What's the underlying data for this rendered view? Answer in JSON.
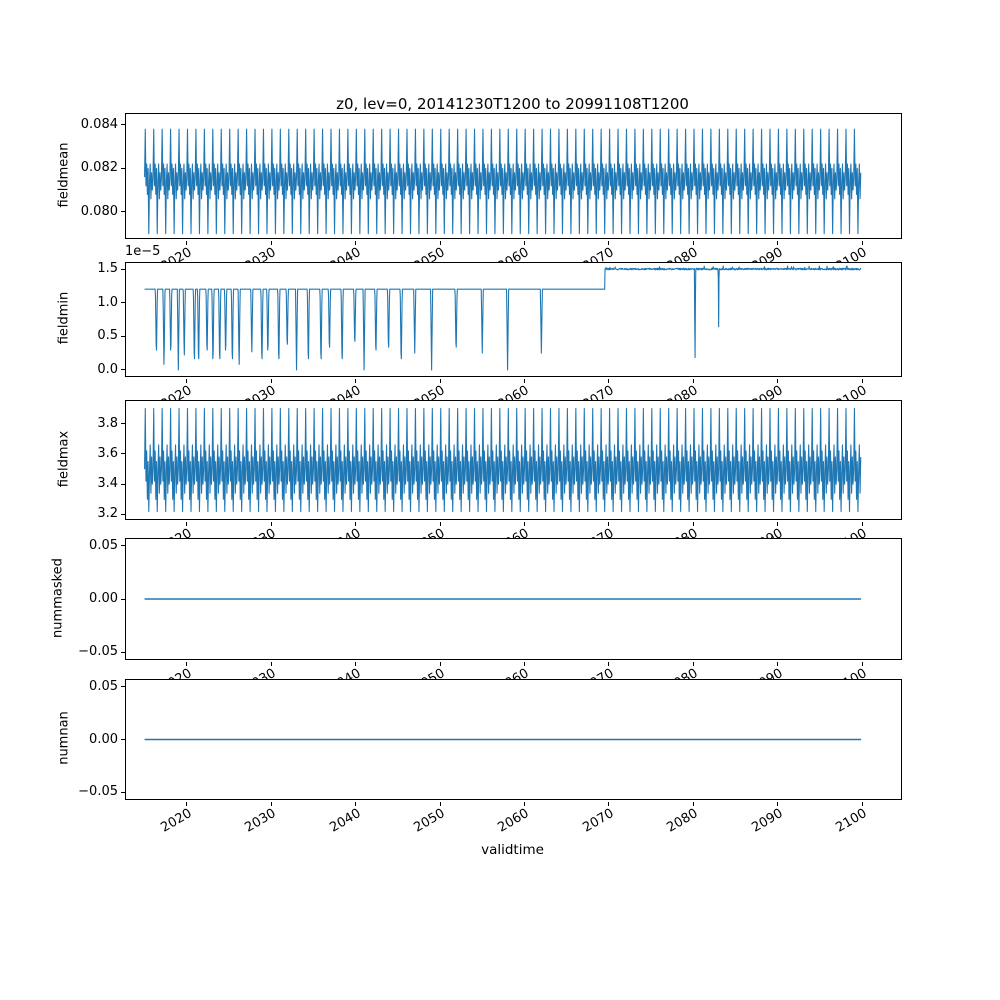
{
  "title": "z0, lev=0, 20141230T1200 to 20991108T1200",
  "xlabel": "validtime",
  "line_color": "#1f77b4",
  "x": {
    "lim": [
      2012.8,
      2104.6
    ],
    "data_start": 2015.0,
    "data_end": 2099.87,
    "ticks": [
      2020,
      2030,
      2040,
      2050,
      2060,
      2070,
      2080,
      2090,
      2100
    ],
    "tick_labels": [
      "2020",
      "2030",
      "2040",
      "2050",
      "2060",
      "2070",
      "2080",
      "2090",
      "2100"
    ]
  },
  "chart_data": [
    {
      "type": "line",
      "ylabel": "fieldmean",
      "ylim": [
        0.0788,
        0.0845
      ],
      "yticks": [
        0.08,
        0.082,
        0.084
      ],
      "ytick_labels": [
        "0.080",
        "0.082",
        "0.084"
      ],
      "description": "dense annual oscillation between ~0.0790 and ~0.0838",
      "signal": {
        "kind": "pattern",
        "samples_per_year": 12,
        "pattern": [
          0.0816,
          0.0838,
          0.0812,
          0.0822,
          0.0808,
          0.082,
          0.079,
          0.0814,
          0.0822,
          0.0806,
          0.0818,
          0.081
        ]
      }
    },
    {
      "type": "line",
      "ylabel": "fieldmin",
      "offset_text": "1e−5",
      "ylim": [
        -9e-07,
        1.59e-05
      ],
      "yticks": [
        0,
        5e-06,
        1e-05,
        1.5e-05
      ],
      "ytick_labels": [
        "0.0",
        "0.5",
        "1.0",
        "1.5"
      ],
      "description": "base 1.2e-5 with sharp dips toward 0 until ~2062, steps up to ~1.5e-5 at ~2069.5 with small noise; deep dip near 2080 and partial dip near 2083",
      "signal": {
        "kind": "piecewise",
        "base": 1.2e-05,
        "step_year": 2069.5,
        "step_value": 1.5e-05,
        "noise_amp": 1.2e-07,
        "spike_amp": 3.5e-07,
        "dip_halfwidth": 0.12,
        "dips": [
          [
            2016.4,
            1.5e-06
          ],
          [
            2017.3,
            0
          ],
          [
            2018.1,
            1.5e-06
          ],
          [
            2019.0,
            0
          ],
          [
            2019.7,
            1.5e-06
          ],
          [
            2020.9,
            0
          ],
          [
            2021.4,
            0
          ],
          [
            2022.4,
            1.5e-06
          ],
          [
            2023.1,
            0
          ],
          [
            2023.9,
            0
          ],
          [
            2024.6,
            1.5e-06
          ],
          [
            2025.4,
            0
          ],
          [
            2026.2,
            0
          ],
          [
            2027.7,
            2e-06
          ],
          [
            2028.9,
            0
          ],
          [
            2029.6,
            1.5e-06
          ],
          [
            2030.9,
            0
          ],
          [
            2031.9,
            2.5e-06
          ],
          [
            2033.0,
            0
          ],
          [
            2034.4,
            0
          ],
          [
            2035.9,
            0
          ],
          [
            2036.9,
            2e-06
          ],
          [
            2038.4,
            0
          ],
          [
            2039.9,
            3e-06
          ],
          [
            2041.0,
            0
          ],
          [
            2042.4,
            1.5e-06
          ],
          [
            2043.9,
            2e-06
          ],
          [
            2045.4,
            0
          ],
          [
            2047.0,
            2.5e-06
          ],
          [
            2049.0,
            0
          ],
          [
            2051.9,
            2e-06
          ],
          [
            2055.0,
            2.5e-06
          ],
          [
            2058.0,
            0
          ],
          [
            2062.0,
            2.5e-06
          ]
        ],
        "late_dips": [
          [
            2080.2,
            0,
            0.07
          ],
          [
            2083.0,
            6.5e-06,
            0.05
          ]
        ]
      }
    },
    {
      "type": "line",
      "ylabel": "fieldmax",
      "ylim": [
        3.17,
        3.95
      ],
      "yticks": [
        3.2,
        3.4,
        3.6,
        3.8
      ],
      "ytick_labels": [
        "3.2",
        "3.4",
        "3.6",
        "3.8"
      ],
      "description": "dense annual oscillation between ~3.22 and ~3.90",
      "signal": {
        "kind": "pattern",
        "samples_per_year": 12,
        "pattern": [
          3.5,
          3.9,
          3.42,
          3.62,
          3.3,
          3.55,
          3.22,
          3.48,
          3.66,
          3.34,
          3.58,
          3.4
        ]
      }
    },
    {
      "type": "line",
      "ylabel": "nummasked",
      "ylim": [
        -0.0562,
        0.0562
      ],
      "yticks": [
        -0.05,
        0,
        0.05
      ],
      "ytick_labels": [
        "−0.05",
        "0.00",
        "0.05"
      ],
      "description": "constant 0",
      "signal": {
        "kind": "flat",
        "value": 0
      }
    },
    {
      "type": "line",
      "ylabel": "numnan",
      "ylim": [
        -0.0562,
        0.0562
      ],
      "yticks": [
        -0.05,
        0,
        0.05
      ],
      "ytick_labels": [
        "−0.05",
        "0.00",
        "0.05"
      ],
      "description": "constant 0",
      "signal": {
        "kind": "flat",
        "value": 0
      }
    }
  ]
}
